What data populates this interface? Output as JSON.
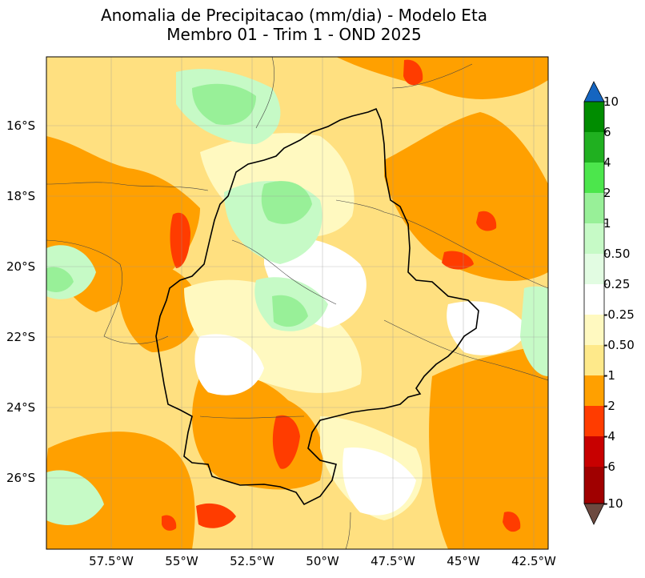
{
  "title": {
    "line1": "Anomalia de Precipitacao (mm/dia) - Modelo Eta",
    "line2": "Membro 01 - Trim 1 - OND 2025"
  },
  "map": {
    "lat_labels": [
      "16°S",
      "18°S",
      "20°S",
      "22°S",
      "24°S",
      "26°S"
    ],
    "lon_labels": [
      "57.5°W",
      "55°W",
      "52.5°W",
      "50°W",
      "47.5°W",
      "45°W",
      "42.5°W"
    ],
    "gridlines": true
  },
  "colorbar": {
    "labels": [
      "10",
      "6",
      "4",
      "2",
      "1",
      "0.50",
      "0.25",
      "-0.25",
      "-0.50",
      "-1",
      "-2",
      "-4",
      "-6",
      "-10"
    ],
    "colors": {
      "gt10": "#1565c0",
      "6_10": "#008c00",
      "4_6": "#20b020",
      "2_4": "#4ce64c",
      "1_2": "#98f098",
      "0.5_1": "#c6fac6",
      "0.25_0.5": "#e2fce2",
      "neutral": "#ffffff",
      "m0.5_m0.25": "#fff9c0",
      "m1_m0.5": "#fee98a",
      "m2_m1": "#ffe080",
      "m4_m2": "#ffa000",
      "m6_m4": "#ff3c00",
      "m10_m6": "#c80000",
      "ltm10": "#a00000",
      "under": "#6d4a40"
    }
  }
}
